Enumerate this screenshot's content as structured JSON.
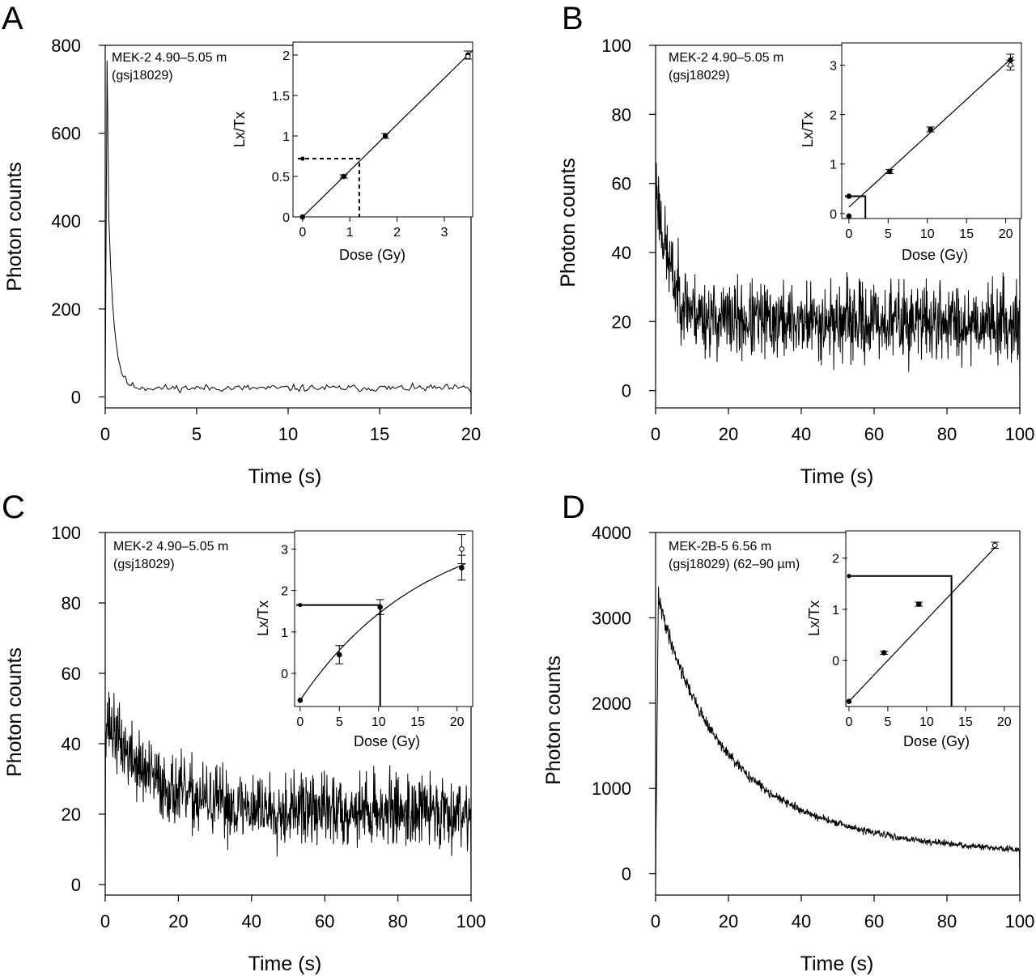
{
  "chart_data": [
    {
      "panel": "A",
      "type": "line",
      "xlabel": "Time (s)",
      "ylabel": "Photon counts",
      "xlim": [
        0,
        20
      ],
      "xticks": [
        0,
        5,
        10,
        15,
        20
      ],
      "ylim": [
        -25,
        800
      ],
      "yticks": [
        0,
        200,
        400,
        600,
        800
      ],
      "annotation": [
        "MEK-2 4.90–5.05 m",
        "(gsj18029)"
      ],
      "signal": {
        "peak": 770,
        "decay_tau": 0.3,
        "background": 20,
        "noise": 4,
        "step": 0.1,
        "end_value": 10
      },
      "inset": {
        "type": "scatter",
        "xlabel": "Dose (Gy)",
        "ylabel": "Lx/Tx",
        "xlim": [
          -0.1,
          3.6
        ],
        "xticks": [
          0,
          1,
          2,
          3
        ],
        "ylim": [
          0,
          2.1
        ],
        "yticks": [
          0,
          0.5,
          1,
          1.5,
          2
        ],
        "ytick_labels": [
          "0",
          "0.5",
          "1",
          "1.5",
          "2"
        ],
        "points": [
          {
            "x": 0,
            "y": 0,
            "err": 0,
            "open": false
          },
          {
            "x": 0.87,
            "y": 0.5,
            "err": 0.02,
            "open": false
          },
          {
            "x": 1.75,
            "y": 1.0,
            "err": 0.03,
            "open": false
          },
          {
            "x": 3.5,
            "y": 2.0,
            "err": 0.05,
            "open": false
          },
          {
            "x": 3.5,
            "y": 1.98,
            "err": 0,
            "open": true
          }
        ],
        "fit": {
          "kind": "linear",
          "slope": 0.5714,
          "intercept": 0,
          "x_range": [
            0,
            3.6
          ]
        },
        "projection": {
          "dose": 1.2,
          "value": 0.72,
          "style": "dashed"
        }
      }
    },
    {
      "panel": "B",
      "type": "line",
      "xlabel": "Time (s)",
      "ylabel": "Photon counts",
      "xlim": [
        0,
        100
      ],
      "xticks": [
        0,
        20,
        40,
        60,
        80,
        100
      ],
      "ylim": [
        -5,
        100
      ],
      "yticks": [
        0,
        20,
        40,
        60,
        80,
        100
      ],
      "annotation": [
        "MEK-2 4.90–5.05 m",
        "(gsj18029)"
      ],
      "signal": {
        "peak": 62,
        "decay_tau": 4,
        "background": 20,
        "noise": 5.5,
        "step": 0.1,
        "end_value": 0
      },
      "inset": {
        "type": "scatter",
        "xlabel": "Dose (Gy)",
        "ylabel": "Lx/Tx",
        "xlim": [
          -0.5,
          22
        ],
        "xticks": [
          0,
          5,
          10,
          15,
          20
        ],
        "ylim": [
          -0.1,
          3.4
        ],
        "yticks": [
          0,
          1,
          2,
          3
        ],
        "ytick_labels": [
          "0",
          "1",
          "2",
          "3"
        ],
        "points": [
          {
            "x": 0,
            "y": -0.05,
            "err": 0,
            "open": false
          },
          {
            "x": 0,
            "y": 0.35,
            "err": 0,
            "open": false
          },
          {
            "x": 5.2,
            "y": 0.85,
            "err": 0.04,
            "open": false
          },
          {
            "x": 10.4,
            "y": 1.7,
            "err": 0.05,
            "open": false
          },
          {
            "x": 20.6,
            "y": 3.1,
            "err": 0.12,
            "open": false
          },
          {
            "x": 20.6,
            "y": 3.0,
            "err": 0.1,
            "open": true
          }
        ],
        "fit": {
          "kind": "linear",
          "slope": 0.145,
          "intercept": 0.13,
          "x_range": [
            0,
            21
          ]
        },
        "projection": {
          "dose": 2.1,
          "value": 0.35,
          "style": "solid"
        }
      }
    },
    {
      "panel": "C",
      "type": "line",
      "xlabel": "Time (s)",
      "ylabel": "Photon counts",
      "xlim": [
        0,
        100
      ],
      "xticks": [
        0,
        20,
        40,
        60,
        80,
        100
      ],
      "ylim": [
        -3,
        100
      ],
      "yticks": [
        0,
        20,
        40,
        60,
        80,
        100
      ],
      "annotation": [
        "MEK-2 4.90–5.05 m",
        "(gsj18029)"
      ],
      "signal": {
        "peak": 48,
        "decay_tau": 12,
        "background": 21,
        "noise": 5,
        "step": 0.1,
        "end_value": 0
      },
      "inset": {
        "type": "scatter",
        "xlabel": "Dose (Gy)",
        "ylabel": "Lx/Tx",
        "xlim": [
          -0.5,
          22
        ],
        "xticks": [
          0,
          5,
          10,
          15,
          20
        ],
        "ylim": [
          -0.8,
          3.4
        ],
        "yticks": [
          0,
          1,
          2,
          3
        ],
        "ytick_labels": [
          "0",
          "1",
          "2",
          "3"
        ],
        "points": [
          {
            "x": 0,
            "y": -0.65,
            "err": 0,
            "open": false
          },
          {
            "x": 5,
            "y": 0.45,
            "err": 0.22,
            "open": false
          },
          {
            "x": 10.2,
            "y": 1.6,
            "err": 0.18,
            "open": false
          },
          {
            "x": 20.6,
            "y": 2.55,
            "err": 0.3,
            "open": false
          },
          {
            "x": 20.6,
            "y": 3.0,
            "err": 0.35,
            "open": true
          }
        ],
        "fit": {
          "kind": "saturating",
          "a": -0.65,
          "b": 4.5,
          "d0": 16,
          "x_range": [
            0,
            21
          ]
        },
        "projection": {
          "dose": 10.2,
          "value": 1.65,
          "style": "solid"
        }
      }
    },
    {
      "panel": "D",
      "type": "line",
      "xlabel": "Time (s)",
      "ylabel": "Photon counts",
      "xlim": [
        0,
        100
      ],
      "xticks": [
        0,
        20,
        40,
        60,
        80,
        100
      ],
      "ylim": [
        -250,
        4000
      ],
      "yticks": [
        0,
        1000,
        2000,
        3000,
        4000
      ],
      "annotation": [
        "MEK-2B-5 6.56 m",
        "(gsj18029) (62–90 µm)"
      ],
      "signal": {
        "peak": 3350,
        "decay_tau": 14,
        "background": 180,
        "noise": 18,
        "step": 0.1,
        "end_value": -200,
        "kind": "slow"
      },
      "inset": {
        "type": "scatter",
        "xlabel": "Dose (Gy)",
        "ylabel": "Lx/Tx",
        "xlim": [
          -0.2,
          22
        ],
        "xticks": [
          0,
          5,
          10,
          15,
          20
        ],
        "ylim": [
          -0.9,
          2.5
        ],
        "yticks": [
          0,
          1,
          2
        ],
        "ytick_labels": [
          "0",
          "1",
          "2"
        ],
        "points": [
          {
            "x": 0,
            "y": -0.8,
            "err": 0,
            "open": false
          },
          {
            "x": 4.5,
            "y": 0.15,
            "err": 0.03,
            "open": false
          },
          {
            "x": 9,
            "y": 1.1,
            "err": 0.04,
            "open": false
          },
          {
            "x": 18.8,
            "y": 2.25,
            "err": 0.06,
            "open": false
          },
          {
            "x": 18.8,
            "y": 2.25,
            "err": 0,
            "open": true
          }
        ],
        "fit": {
          "kind": "linear",
          "slope": 0.16,
          "intercept": -0.8,
          "x_range": [
            0,
            19
          ]
        },
        "projection": {
          "dose": 13.2,
          "value": 1.65,
          "style": "solid"
        }
      }
    }
  ]
}
